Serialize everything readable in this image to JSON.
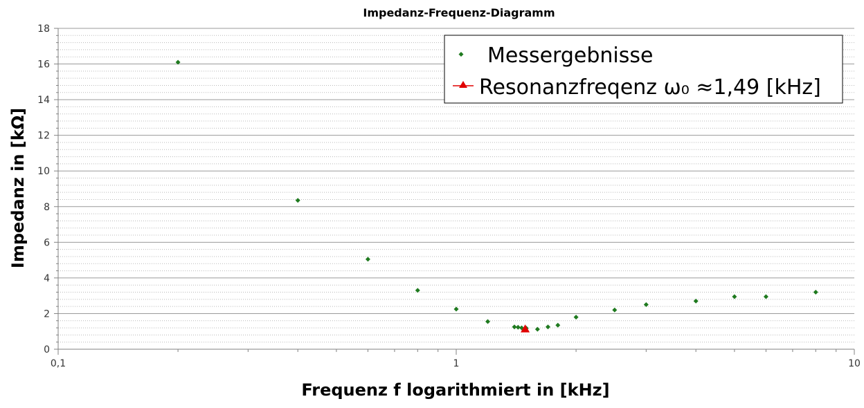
{
  "chart_data": {
    "type": "scatter",
    "title": "Impedanz-Frequenz-Diagramm",
    "xlabel": "Frequenz f logarithmiert in [kHz]",
    "ylabel": "Impedanz in [kΩ]",
    "xscale": "log",
    "xlim": [
      0.1,
      10
    ],
    "ylim": [
      0,
      18
    ],
    "xticks": [
      0.1,
      1,
      10
    ],
    "xtick_labels": [
      "0,1",
      "1",
      "10"
    ],
    "yticks": [
      0,
      2,
      4,
      6,
      8,
      10,
      12,
      14,
      16,
      18
    ],
    "ytick_labels": [
      "0",
      "2",
      "4",
      "6",
      "8",
      "10",
      "12",
      "14",
      "16",
      "18"
    ],
    "grid": true,
    "legend_position": "top-right",
    "series": [
      {
        "name": "Messergebnisse",
        "color": "#1f7a1f",
        "marker": "diamond",
        "x": [
          0.2,
          0.4,
          0.6,
          0.8,
          1.0,
          1.2,
          1.4,
          1.43,
          1.46,
          1.5,
          1.6,
          1.7,
          1.8,
          2.0,
          2.5,
          3.0,
          4.0,
          5.0,
          6.0,
          8.0
        ],
        "y": [
          16.1,
          8.35,
          5.05,
          3.3,
          2.25,
          1.55,
          1.25,
          1.23,
          1.2,
          1.18,
          1.12,
          1.25,
          1.35,
          1.8,
          2.2,
          2.5,
          2.7,
          2.95,
          2.95,
          3.2
        ]
      },
      {
        "name": "Resonanzfreqenz ω₀ ≈1,49 [kHz]",
        "color": "#e00000",
        "marker": "triangle",
        "x": [
          1.49
        ],
        "y": [
          1.12
        ]
      }
    ]
  }
}
